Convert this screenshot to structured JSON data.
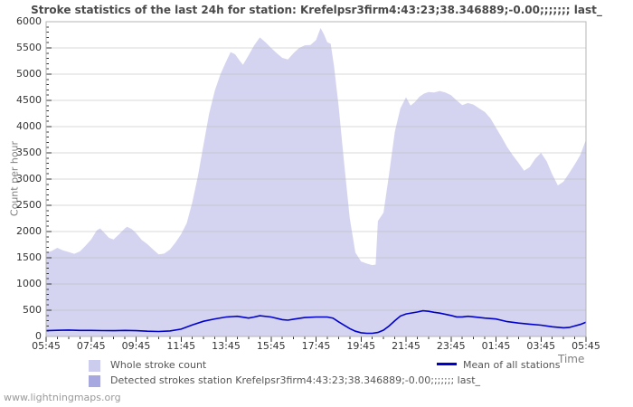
{
  "footer": {
    "watermark": "www.lightningmaps.org"
  },
  "chart_data": {
    "type": "area",
    "title": "Stroke statistics of the last 24h for station: Krefelpsr3firm4:43:23;38.346889;-0.00;;;;;;; last_",
    "xlabel": "Time",
    "ylabel": "Count per hour",
    "ylim": [
      0,
      6000
    ],
    "ytick_step": 500,
    "ytick_minor_step": 100,
    "x_span_hours": 24,
    "xtick_labels": [
      "05:45",
      "07:45",
      "09:45",
      "11:45",
      "13:45",
      "15:45",
      "17:45",
      "19:45",
      "21:45",
      "23:45",
      "01:45",
      "03:45",
      "05:45"
    ],
    "xtick_interval_hours": 2,
    "xtick_minor_interval_hours": 0.5,
    "grid": true,
    "legend_position": "bottom",
    "colors": {
      "grid": "#b9b9b9",
      "border": "#b4b4b4",
      "tick": "#333333",
      "background": "#ffffff"
    },
    "series": [
      {
        "name": "Whole stroke count",
        "type": "area",
        "color": "#d4d4f1",
        "legend_swatch": "#ccccee",
        "points": [
          [
            0,
            1600
          ],
          [
            0.25,
            1630
          ],
          [
            0.5,
            1690
          ],
          [
            0.75,
            1640
          ],
          [
            1,
            1610
          ],
          [
            1.25,
            1575
          ],
          [
            1.5,
            1620
          ],
          [
            1.75,
            1730
          ],
          [
            2,
            1850
          ],
          [
            2.25,
            2020
          ],
          [
            2.4,
            2060
          ],
          [
            2.6,
            1970
          ],
          [
            2.8,
            1880
          ],
          [
            3,
            1850
          ],
          [
            3.25,
            1950
          ],
          [
            3.5,
            2060
          ],
          [
            3.6,
            2090
          ],
          [
            3.8,
            2050
          ],
          [
            4,
            1970
          ],
          [
            4.25,
            1840
          ],
          [
            4.5,
            1760
          ],
          [
            4.75,
            1660
          ],
          [
            5,
            1565
          ],
          [
            5.25,
            1580
          ],
          [
            5.5,
            1655
          ],
          [
            5.75,
            1790
          ],
          [
            6,
            1950
          ],
          [
            6.25,
            2160
          ],
          [
            6.5,
            2560
          ],
          [
            6.75,
            3060
          ],
          [
            7,
            3660
          ],
          [
            7.25,
            4250
          ],
          [
            7.5,
            4690
          ],
          [
            7.75,
            5000
          ],
          [
            8,
            5240
          ],
          [
            8.2,
            5420
          ],
          [
            8.4,
            5380
          ],
          [
            8.6,
            5260
          ],
          [
            8.75,
            5180
          ],
          [
            9,
            5360
          ],
          [
            9.25,
            5550
          ],
          [
            9.5,
            5700
          ],
          [
            9.75,
            5610
          ],
          [
            10,
            5500
          ],
          [
            10.25,
            5400
          ],
          [
            10.5,
            5310
          ],
          [
            10.75,
            5280
          ],
          [
            11,
            5400
          ],
          [
            11.25,
            5500
          ],
          [
            11.5,
            5550
          ],
          [
            11.75,
            5555
          ],
          [
            12,
            5650
          ],
          [
            12.2,
            5880
          ],
          [
            12.35,
            5760
          ],
          [
            12.5,
            5610
          ],
          [
            12.65,
            5580
          ],
          [
            12.8,
            5150
          ],
          [
            13,
            4400
          ],
          [
            13.25,
            3300
          ],
          [
            13.5,
            2250
          ],
          [
            13.75,
            1600
          ],
          [
            14,
            1430
          ],
          [
            14.25,
            1390
          ],
          [
            14.5,
            1360
          ],
          [
            14.65,
            1370
          ],
          [
            14.75,
            2200
          ],
          [
            15,
            2360
          ],
          [
            15.25,
            3100
          ],
          [
            15.5,
            3900
          ],
          [
            15.75,
            4350
          ],
          [
            16,
            4560
          ],
          [
            16.2,
            4400
          ],
          [
            16.4,
            4470
          ],
          [
            16.6,
            4570
          ],
          [
            16.8,
            4630
          ],
          [
            17,
            4660
          ],
          [
            17.25,
            4650
          ],
          [
            17.5,
            4680
          ],
          [
            17.75,
            4650
          ],
          [
            18,
            4600
          ],
          [
            18.25,
            4500
          ],
          [
            18.5,
            4410
          ],
          [
            18.75,
            4450
          ],
          [
            19,
            4420
          ],
          [
            19.25,
            4350
          ],
          [
            19.5,
            4280
          ],
          [
            19.75,
            4160
          ],
          [
            20,
            3980
          ],
          [
            20.25,
            3800
          ],
          [
            20.5,
            3610
          ],
          [
            20.75,
            3450
          ],
          [
            21,
            3310
          ],
          [
            21.25,
            3160
          ],
          [
            21.5,
            3230
          ],
          [
            21.75,
            3390
          ],
          [
            22,
            3500
          ],
          [
            22.25,
            3340
          ],
          [
            22.5,
            3090
          ],
          [
            22.75,
            2880
          ],
          [
            23,
            2950
          ],
          [
            23.25,
            3110
          ],
          [
            23.5,
            3280
          ],
          [
            23.75,
            3460
          ],
          [
            24,
            3750
          ]
        ]
      },
      {
        "name": "Detected strokes station Krefelpsr3firm4:43:23;38.346889;-0.00;;;;;;; last_",
        "type": "area",
        "color": "#a8a8e0",
        "legend_swatch": "#a8a8e0",
        "points": [
          [
            0,
            0
          ],
          [
            24,
            0
          ]
        ]
      },
      {
        "name": "Mean of all stations",
        "type": "line",
        "color": "#0000cc",
        "legend_swatch": "#0000cc",
        "points": [
          [
            0,
            110
          ],
          [
            0.5,
            118
          ],
          [
            1,
            122
          ],
          [
            1.5,
            115
          ],
          [
            2,
            115
          ],
          [
            2.5,
            112
          ],
          [
            3,
            110
          ],
          [
            3.5,
            115
          ],
          [
            4,
            110
          ],
          [
            4.5,
            100
          ],
          [
            5,
            95
          ],
          [
            5.5,
            105
          ],
          [
            6,
            140
          ],
          [
            6.5,
            220
          ],
          [
            7,
            290
          ],
          [
            7.5,
            335
          ],
          [
            8,
            370
          ],
          [
            8.5,
            385
          ],
          [
            9,
            350
          ],
          [
            9.25,
            370
          ],
          [
            9.5,
            395
          ],
          [
            10,
            370
          ],
          [
            10.5,
            320
          ],
          [
            10.75,
            310
          ],
          [
            11,
            330
          ],
          [
            11.5,
            360
          ],
          [
            12,
            370
          ],
          [
            12.5,
            370
          ],
          [
            12.75,
            350
          ],
          [
            13,
            280
          ],
          [
            13.5,
            150
          ],
          [
            13.75,
            100
          ],
          [
            14,
            70
          ],
          [
            14.25,
            60
          ],
          [
            14.5,
            60
          ],
          [
            14.75,
            75
          ],
          [
            15,
            120
          ],
          [
            15.25,
            200
          ],
          [
            15.5,
            300
          ],
          [
            15.75,
            390
          ],
          [
            16,
            430
          ],
          [
            16.5,
            465
          ],
          [
            16.75,
            490
          ],
          [
            17,
            480
          ],
          [
            17.25,
            460
          ],
          [
            17.5,
            445
          ],
          [
            18,
            400
          ],
          [
            18.25,
            372
          ],
          [
            18.5,
            372
          ],
          [
            18.75,
            385
          ],
          [
            19,
            375
          ],
          [
            19.5,
            350
          ],
          [
            20,
            332
          ],
          [
            20.5,
            282
          ],
          [
            21,
            255
          ],
          [
            21.5,
            235
          ],
          [
            22,
            215
          ],
          [
            22.5,
            185
          ],
          [
            23,
            165
          ],
          [
            23.25,
            170
          ],
          [
            23.5,
            200
          ],
          [
            23.75,
            230
          ],
          [
            24,
            270
          ]
        ]
      }
    ]
  }
}
